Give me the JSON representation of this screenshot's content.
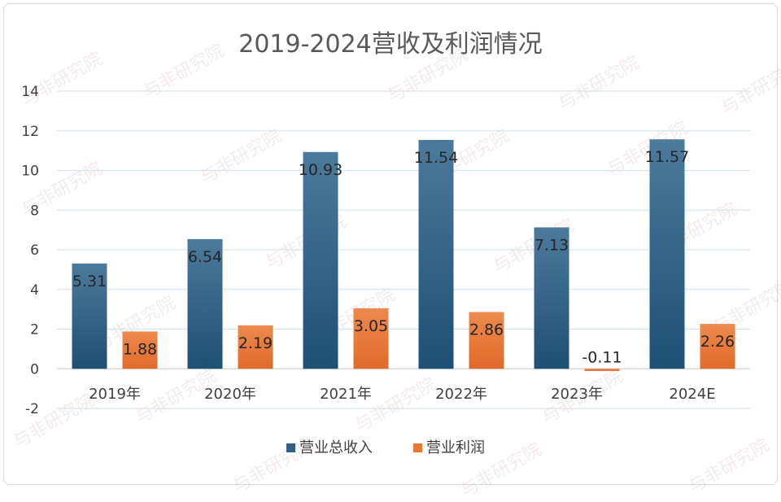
{
  "chart_data": {
    "type": "bar",
    "title": "2019-2024营收及利润情况",
    "categories": [
      "2019年",
      "2020年",
      "2021年",
      "2022年",
      "2023年",
      "2024E"
    ],
    "series": [
      {
        "name": "营业总收入",
        "values": [
          5.31,
          6.54,
          10.93,
          11.54,
          7.13,
          11.57
        ],
        "color": "#2f5f82"
      },
      {
        "name": "营业利润",
        "values": [
          1.88,
          2.19,
          3.05,
          2.86,
          -0.11,
          2.26
        ],
        "color": "#e8783a"
      }
    ],
    "ylim": [
      -2,
      14
    ],
    "yticks": [
      -2,
      0,
      2,
      4,
      6,
      8,
      10,
      12,
      14
    ],
    "grid": true,
    "legend_position": "bottom",
    "watermark": "与非研究院"
  }
}
